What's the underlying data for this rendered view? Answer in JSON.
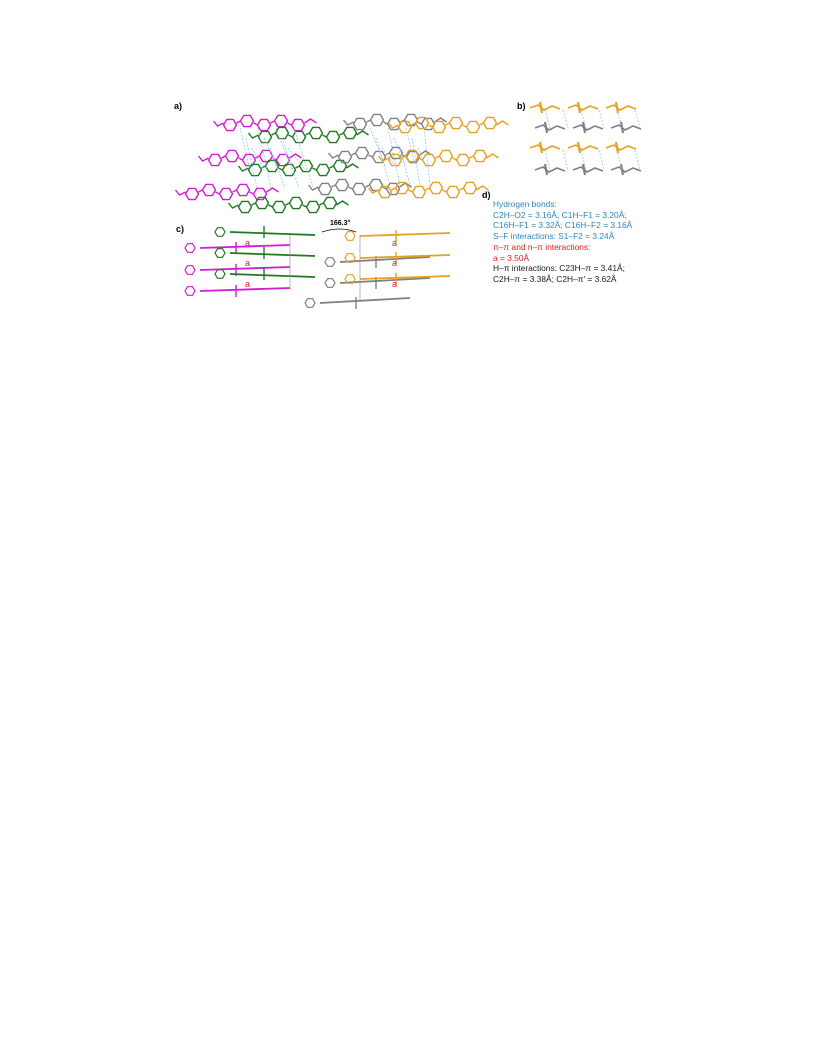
{
  "panels": {
    "a": "a)",
    "b": "b)",
    "c": "c)",
    "d": "d)"
  },
  "angle_label": "166.3°",
  "a_label": "a",
  "legend": {
    "hbonds_title": "Hydrogen bonds:",
    "hbonds_line1": "C2H–O2 = 3.16Å; C1H–F1 = 3.20Å;",
    "hbonds_line2": "C16H–F1 = 3.32Å; C16H–F2 = 3.16Å",
    "sf": "S–F interactions: S1–F2 = 3.24Å",
    "pipi_title": "π–π and n–π interactions:",
    "pipi_value": "a = 3.50Å",
    "hpi_line1": "H–π interactions: C23H–π = 3.41Å;",
    "hpi_line2": "C2H–π = 3.38Å; C2H–π' = 3.62Å"
  },
  "colors": {
    "magenta": "#d41cd4",
    "green": "#1f7a1f",
    "gray": "#808080",
    "orange": "#e8a020",
    "blue": "#2e86c1",
    "red": "#e02020",
    "contact": "#8fc8e0"
  }
}
